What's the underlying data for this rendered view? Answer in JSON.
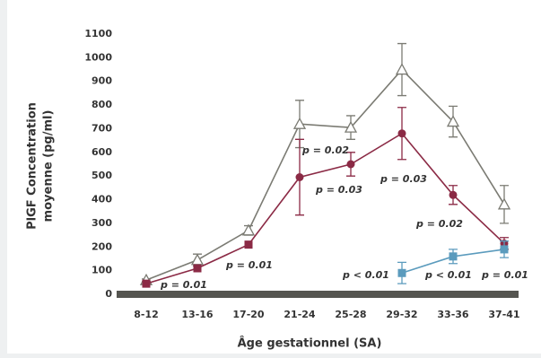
{
  "chart_data": {
    "type": "line",
    "ylabel": [
      "PlGF Concentration",
      "moyenne (pg/ml)"
    ],
    "xlabel": "Âge gestationnel (SA)",
    "categories": [
      "8-12",
      "13-16",
      "17-20",
      "21-24",
      "25-28",
      "29-32",
      "33-36",
      "37-41"
    ],
    "ylim": [
      0,
      1100
    ],
    "yticks": [
      0,
      100,
      200,
      300,
      400,
      500,
      600,
      700,
      800,
      900,
      1000,
      1100
    ],
    "grid": false,
    "series": [
      {
        "color": "#7b7b73",
        "marker": "triangle",
        "values": [
          60,
          145,
          270,
          720,
          705,
          950,
          730,
          380
        ],
        "errors": [
          5,
          25,
          20,
          100,
          50,
          110,
          65,
          80
        ]
      },
      {
        "color": "#8b2a45",
        "marker": "circle",
        "markers": [
          "square",
          "square",
          "square",
          "circle",
          "circle",
          "circle",
          "circle",
          "circle"
        ],
        "values": [
          45,
          110,
          210,
          495,
          550,
          680,
          420,
          215
        ],
        "errors": [
          0,
          0,
          0,
          160,
          50,
          110,
          40,
          25
        ]
      },
      {
        "color": "#5b9bbd",
        "marker": "square",
        "values": [
          null,
          null,
          null,
          null,
          null,
          90,
          160,
          190
        ],
        "errors": [
          null,
          null,
          null,
          null,
          null,
          45,
          30,
          35
        ]
      }
    ],
    "annotations": [
      "p = 0.01",
      "p = 0.01",
      "p = 0.02",
      "p = 0.03",
      "p = 0.03",
      "p = 0.02",
      "p < 0.01",
      "p < 0.01",
      "p = 0.01"
    ]
  }
}
